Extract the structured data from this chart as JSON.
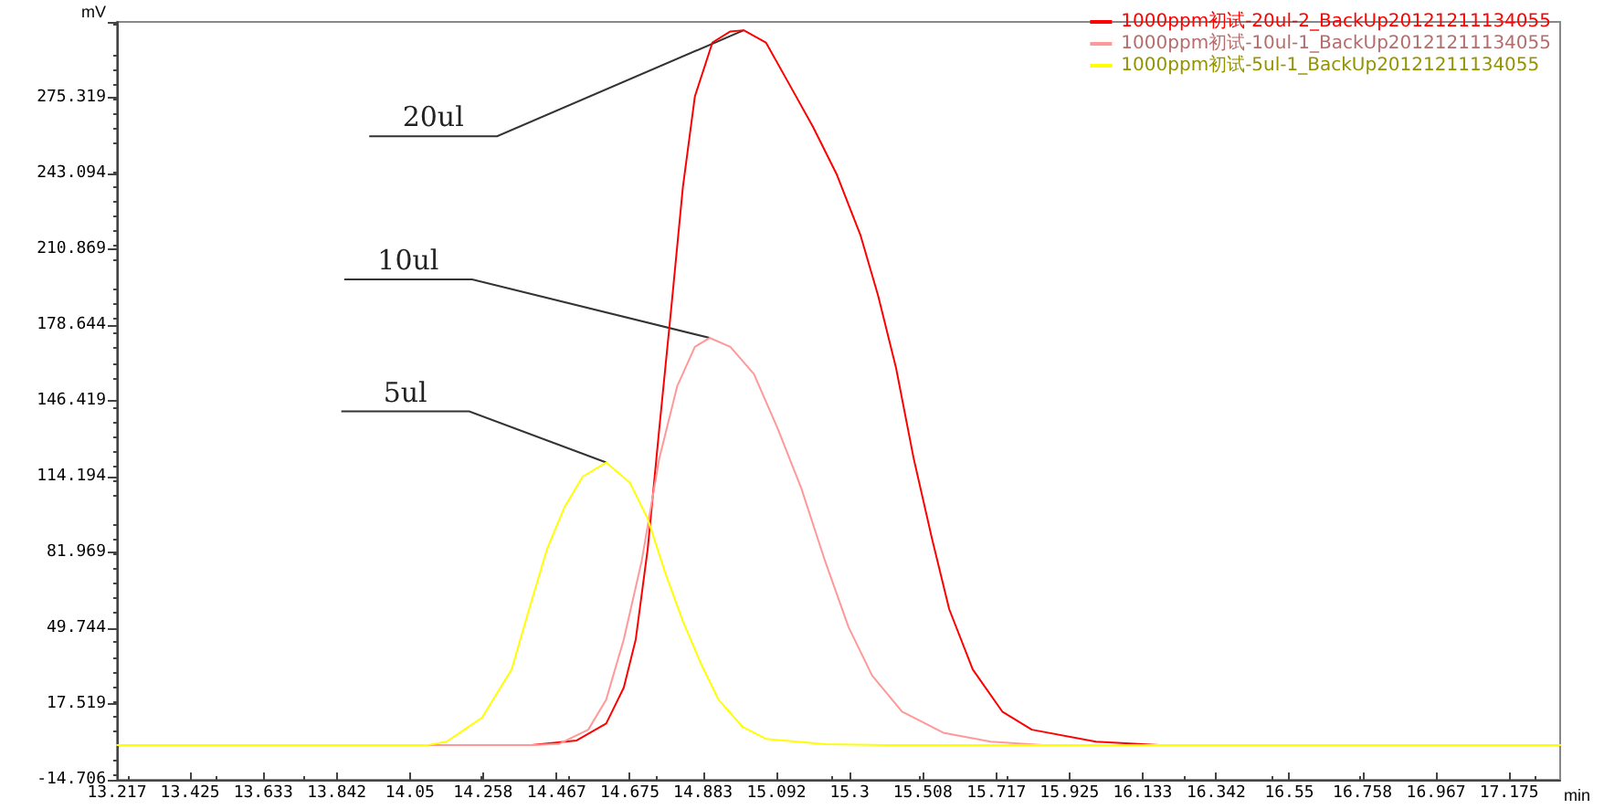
{
  "chart_data": {
    "type": "line",
    "xlabel": "min",
    "ylabel": "mV",
    "xlim": [
      13.217,
      17.32
    ],
    "ylim": [
      -14.706,
      307.544
    ],
    "xticks": [
      13.217,
      13.425,
      13.633,
      13.842,
      14.05,
      14.258,
      14.467,
      14.675,
      14.883,
      15.092,
      15.3,
      15.508,
      15.717,
      15.925,
      16.133,
      16.342,
      16.55,
      16.758,
      16.967,
      17.175
    ],
    "yticks": [
      -14.706,
      17.519,
      49.744,
      81.969,
      114.194,
      146.419,
      178.644,
      210.869,
      243.094,
      275.319,
      {
        "value": 307.544,
        "label": null
      }
    ],
    "grid": false,
    "legend": "top right",
    "marker": "none",
    "line_style": "solid",
    "series": [
      {
        "name": "1000ppm初试-20ul-2_BackUp20121211134055",
        "color": "#ff0000",
        "x": [
          13.217,
          14.389,
          14.524,
          14.608,
          14.658,
          14.692,
          14.726,
          14.759,
          14.793,
          14.826,
          14.86,
          14.91,
          14.961,
          14.999,
          15.062,
          15.129,
          15.196,
          15.264,
          15.331,
          15.381,
          15.432,
          15.482,
          15.533,
          15.583,
          15.65,
          15.734,
          15.818,
          16.0,
          16.18,
          17.32
        ],
        "values": [
          0,
          0,
          2.0,
          9.2,
          24.5,
          45.0,
          83.5,
          134.8,
          186.0,
          237.3,
          275.8,
          298.8,
          303.5,
          304.0,
          298.8,
          280.9,
          262.9,
          242.5,
          216.8,
          191.2,
          160.4,
          122.0,
          88.6,
          57.9,
          32.2,
          14.3,
          6.6,
          1.5,
          0,
          0
        ]
      },
      {
        "name": "1000ppm初试-10ul-1_BackUp20121211134055",
        "color": "#ff9999",
        "x": [
          13.217,
          14.4,
          14.473,
          14.557,
          14.608,
          14.658,
          14.709,
          14.759,
          14.81,
          14.86,
          14.902,
          14.961,
          15.028,
          15.095,
          15.163,
          15.23,
          15.297,
          15.364,
          15.449,
          15.566,
          15.701,
          15.85,
          17.32
        ],
        "values": [
          0,
          0,
          0.5,
          6.6,
          19.4,
          45.0,
          78.4,
          122.0,
          152.7,
          169.4,
          173.2,
          169.4,
          157.8,
          134.8,
          109.1,
          78.4,
          50.2,
          29.6,
          14.3,
          5.3,
          1.5,
          0,
          0
        ]
      },
      {
        "name": "1000ppm初试-5ul-1_BackUp20121211134055",
        "color": "#ffff00",
        "x": [
          13.217,
          14.1,
          14.154,
          14.255,
          14.339,
          14.389,
          14.44,
          14.49,
          14.541,
          14.608,
          14.675,
          14.726,
          14.776,
          14.826,
          14.877,
          14.927,
          14.995,
          15.062,
          15.23,
          15.4,
          17.32
        ],
        "values": [
          0,
          0,
          1.5,
          11.7,
          32.2,
          57.9,
          83.5,
          101.4,
          114.2,
          120.2,
          111.7,
          96.3,
          73.2,
          52.7,
          34.8,
          19.4,
          7.9,
          2.7,
          0.4,
          0,
          0
        ]
      }
    ],
    "annotations": [
      {
        "text": "20ul",
        "x": 14.999,
        "y": 304.0
      },
      {
        "text": "10ul",
        "x": 14.902,
        "y": 173.2
      },
      {
        "text": "5ul",
        "x": 14.608,
        "y": 120.2
      }
    ]
  }
}
